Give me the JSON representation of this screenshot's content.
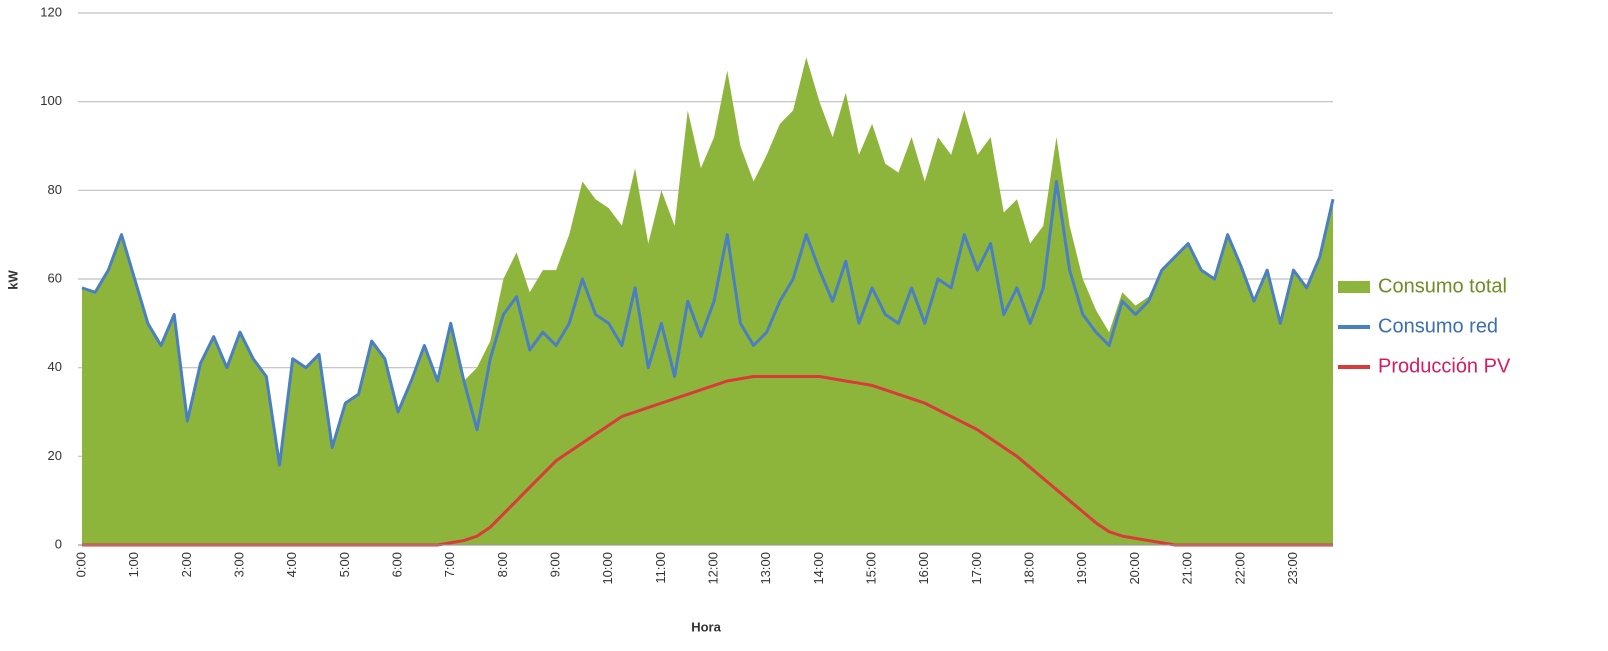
{
  "chart_data": {
    "type": "area-line",
    "xlabel": "Hora",
    "ylabel": "kW",
    "categories": [
      "0:00",
      null,
      null,
      null,
      "1:00",
      null,
      null,
      null,
      "2:00",
      null,
      null,
      null,
      "3:00",
      null,
      null,
      null,
      "4:00",
      null,
      null,
      null,
      "5:00",
      null,
      null,
      null,
      "6:00",
      null,
      null,
      null,
      "7:00",
      null,
      null,
      null,
      "8:00",
      null,
      null,
      null,
      "9:00",
      null,
      null,
      null,
      "10:00",
      null,
      null,
      null,
      "11:00",
      null,
      null,
      null,
      "12:00",
      null,
      null,
      null,
      "13:00",
      null,
      null,
      null,
      "14:00",
      null,
      null,
      null,
      "15:00",
      null,
      null,
      null,
      "16:00",
      null,
      null,
      null,
      "17:00",
      null,
      null,
      null,
      "18:00",
      null,
      null,
      null,
      "19:00",
      null,
      null,
      null,
      "20:00",
      null,
      null,
      null,
      "21:00",
      null,
      null,
      null,
      "22:00",
      null,
      null,
      null,
      "23:00",
      null,
      null,
      null
    ],
    "ylim": [
      0,
      120
    ],
    "yticks": [
      0,
      20,
      40,
      60,
      80,
      100,
      120
    ],
    "grid": true,
    "legend": "right",
    "series": [
      {
        "name": "Consumo total",
        "kind": "area",
        "color": "#8db53c",
        "text_color": "#6b8e23",
        "values": [
          58,
          57,
          62,
          70,
          60,
          50,
          45,
          52,
          28,
          41,
          47,
          40,
          48,
          42,
          38,
          18,
          42,
          40,
          43,
          22,
          32,
          34,
          46,
          42,
          30,
          37,
          45,
          37,
          50,
          37,
          40,
          46,
          60,
          66,
          57,
          62,
          62,
          70,
          82,
          78,
          76,
          72,
          85,
          68,
          80,
          72,
          98,
          85,
          92,
          107,
          90,
          82,
          88,
          95,
          98,
          110,
          100,
          92,
          102,
          88,
          95,
          86,
          84,
          92,
          82,
          92,
          88,
          98,
          88,
          92,
          75,
          78,
          68,
          72,
          92,
          72,
          60,
          53,
          48,
          57,
          54,
          56,
          62,
          65,
          68,
          62,
          60,
          70,
          63,
          55,
          62,
          50,
          62,
          58,
          65,
          78
        ]
      },
      {
        "name": "Consumo red",
        "kind": "line",
        "color": "#4a7fc1",
        "text_color": "#3a6fb0",
        "values": [
          58,
          57,
          62,
          70,
          60,
          50,
          45,
          52,
          28,
          41,
          47,
          40,
          48,
          42,
          38,
          18,
          42,
          40,
          43,
          22,
          32,
          34,
          46,
          42,
          30,
          37,
          45,
          37,
          50,
          37,
          26,
          42,
          52,
          56,
          44,
          48,
          45,
          50,
          60,
          52,
          50,
          45,
          58,
          40,
          50,
          38,
          55,
          47,
          55,
          70,
          50,
          45,
          48,
          55,
          60,
          70,
          62,
          55,
          64,
          50,
          58,
          52,
          50,
          58,
          50,
          60,
          58,
          70,
          62,
          68,
          52,
          58,
          50,
          58,
          82,
          62,
          52,
          48,
          45,
          55,
          52,
          55,
          62,
          65,
          68,
          62,
          60,
          70,
          63,
          55,
          62,
          50,
          62,
          58,
          65,
          78
        ]
      },
      {
        "name": "Producción PV",
        "kind": "line",
        "color": "#d93a3a",
        "text_color": "#d81b60",
        "values": [
          0,
          0,
          0,
          0,
          0,
          0,
          0,
          0,
          0,
          0,
          0,
          0,
          0,
          0,
          0,
          0,
          0,
          0,
          0,
          0,
          0,
          0,
          0,
          0,
          0,
          0,
          0,
          0,
          0.5,
          1,
          2,
          4,
          7,
          10,
          13,
          16,
          19,
          21,
          23,
          25,
          27,
          29,
          30,
          31,
          32,
          33,
          34,
          35,
          36,
          37,
          37.5,
          38,
          38,
          38,
          38,
          38,
          38,
          37.5,
          37,
          36.5,
          36,
          35,
          34,
          33,
          32,
          30.5,
          29,
          27.5,
          26,
          24,
          22,
          20,
          17.5,
          15,
          12.5,
          10,
          7.5,
          5,
          3,
          2,
          1.5,
          1,
          0.5,
          0,
          0,
          0,
          0,
          0,
          0,
          0,
          0,
          0,
          0,
          0,
          0,
          0
        ]
      }
    ]
  }
}
